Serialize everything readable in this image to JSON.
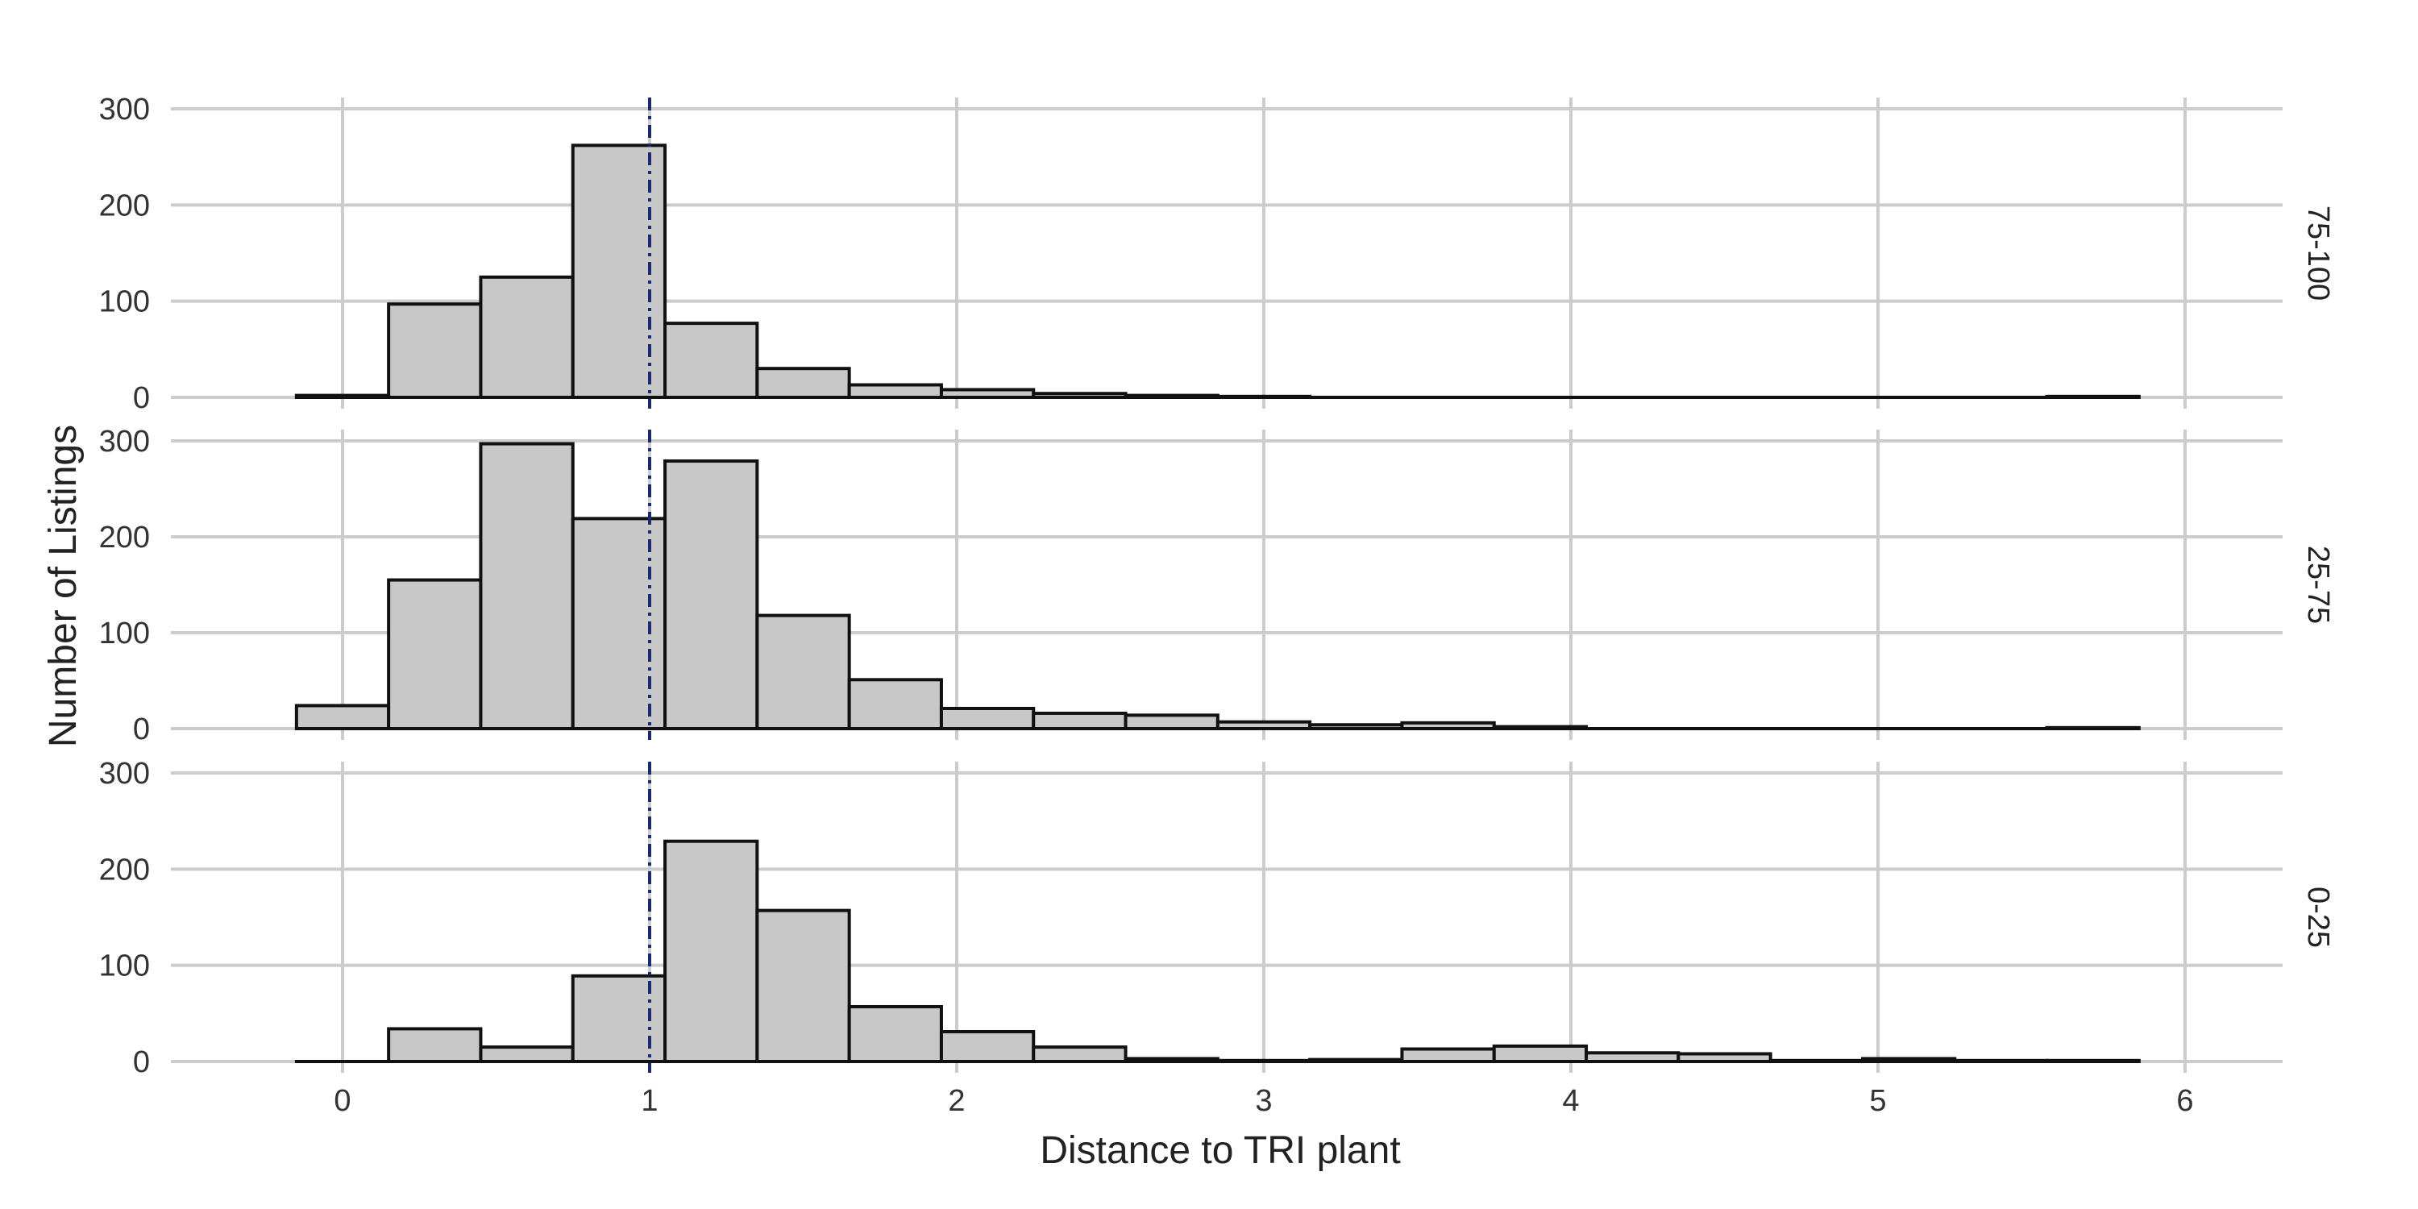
{
  "chart_data": {
    "type": "bar",
    "subtype": "faceted histogram",
    "xlabel": "Distance to TRI plant",
    "ylabel": "Number of Listings",
    "xlim": [
      -0.55,
      6.3
    ],
    "ylim": [
      0,
      300
    ],
    "x_ticks": [
      "0",
      "1",
      "2",
      "3",
      "4",
      "5",
      "6"
    ],
    "y_ticks": [
      "0",
      "100",
      "200",
      "300"
    ],
    "grid": true,
    "bin_width": 0.3,
    "bin_centers": [
      0,
      0.3,
      0.6,
      0.9,
      1.2,
      1.5,
      1.8,
      2.1,
      2.4,
      2.7,
      3.0,
      3.3,
      3.6,
      3.9,
      4.2,
      4.5,
      4.8,
      5.1,
      5.4,
      5.7
    ],
    "reference_line": {
      "x": 1,
      "color": "#1a2a6c",
      "style": "dash-dot"
    },
    "bar_fill": "#c8c8c8",
    "bar_stroke": "#111111",
    "facets": [
      {
        "label": "75-100",
        "values": [
          2,
          97,
          125,
          262,
          77,
          30,
          13,
          8,
          4,
          2,
          1,
          0,
          0,
          0,
          0,
          0,
          0,
          0,
          0,
          1
        ]
      },
      {
        "label": "25-75",
        "values": [
          24,
          155,
          297,
          219,
          279,
          118,
          51,
          21,
          16,
          14,
          7,
          4,
          6,
          2,
          0,
          0,
          0,
          0,
          0,
          1
        ]
      },
      {
        "label": "0-25",
        "values": [
          0,
          34,
          15,
          89,
          229,
          157,
          57,
          31,
          15,
          3,
          1,
          2,
          13,
          16,
          9,
          8,
          1,
          3,
          1,
          1
        ]
      }
    ]
  }
}
